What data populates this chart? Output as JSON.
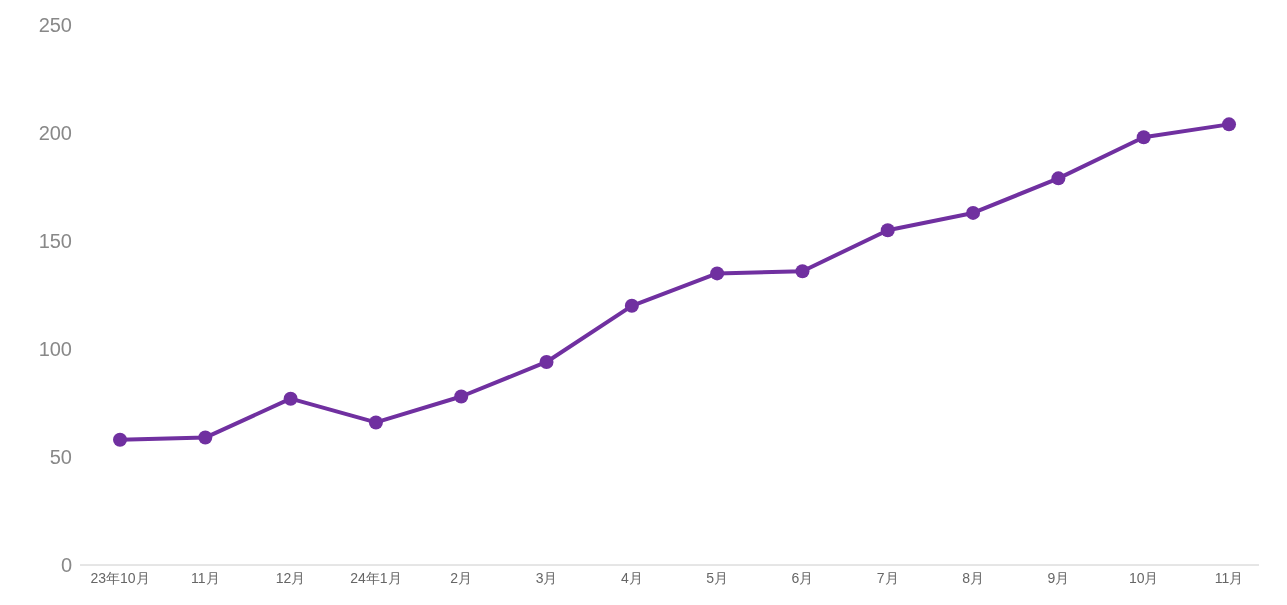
{
  "chart_data": {
    "type": "line",
    "categories": [
      "23年10月",
      "11月",
      "12月",
      "24年1月",
      "2月",
      "3月",
      "4月",
      "5月",
      "6月",
      "7月",
      "8月",
      "9月",
      "10月",
      "11月"
    ],
    "series": [
      {
        "color": "#7030a0",
        "values": [
          58,
          59,
          77,
          66,
          78,
          94,
          120,
          135,
          136,
          155,
          163,
          179,
          198,
          204
        ]
      }
    ],
    "ylim": [
      0,
      250
    ],
    "yticks": [
      0,
      50,
      100,
      150,
      200,
      250
    ],
    "grid": false,
    "legend": false,
    "marker": "circle",
    "line_style": "solid"
  }
}
